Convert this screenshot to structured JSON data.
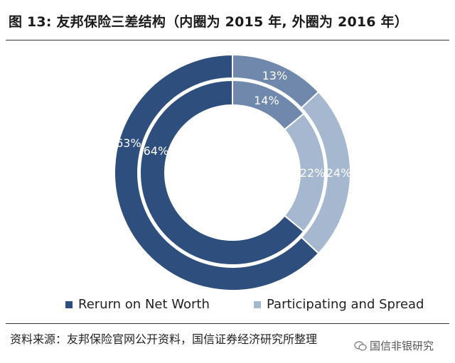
{
  "header": {
    "title": "图 13: 友邦保险三差结构（内圈为 2015 年, 外圈为 2016 年）"
  },
  "chart_data": {
    "type": "pie",
    "variant": "nested-donut",
    "title": "图 13: 友邦保险三差结构（内圈为 2015 年, 外圈为 2016 年）",
    "categories": [
      "Rerurn on Net Worth",
      "Participating and Spread",
      ""
    ],
    "rings": [
      {
        "year": "2015",
        "ring": "inner",
        "values": [
          64,
          22,
          14
        ],
        "labels": [
          "64%",
          "22%",
          "14%"
        ]
      },
      {
        "year": "2016",
        "ring": "outer",
        "values": [
          63,
          24,
          13
        ],
        "labels": [
          "63%",
          "24%",
          "13%"
        ]
      }
    ],
    "colors": [
      "#2e4f7e",
      "#a6b8cf",
      "#6f88ac"
    ],
    "legend": {
      "placement": "bottom",
      "entries": [
        {
          "label": "Rerurn on Net Worth",
          "color": "#2e4f7e"
        },
        {
          "label": "Participating and Spread",
          "color": "#a6b8cf"
        }
      ]
    }
  },
  "footer": {
    "source": "资料来源：友邦保险官网公开资料，国信证券经济研究所整理",
    "watermark": "国信非银研究"
  }
}
